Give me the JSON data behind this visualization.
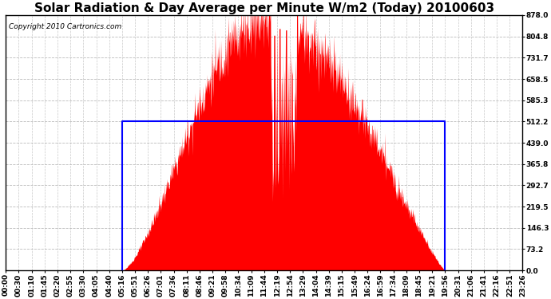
{
  "title": "Solar Radiation & Day Average per Minute W/m2 (Today) 20100603",
  "copyright": "Copyright 2010 Cartronics.com",
  "background_color": "#ffffff",
  "plot_bg_color": "#ffffff",
  "yticks": [
    0.0,
    73.2,
    146.3,
    219.5,
    292.7,
    365.8,
    439.0,
    512.2,
    585.3,
    658.5,
    731.7,
    804.8,
    878.0
  ],
  "ymax": 878.0,
  "ymin": 0.0,
  "day_average": 512.2,
  "xtick_labels": [
    "00:00",
    "00:30",
    "01:10",
    "01:45",
    "02:20",
    "02:55",
    "03:30",
    "04:05",
    "04:40",
    "05:16",
    "05:51",
    "06:26",
    "07:01",
    "07:36",
    "08:11",
    "08:46",
    "09:21",
    "09:58",
    "10:34",
    "11:09",
    "11:44",
    "12:19",
    "12:54",
    "13:29",
    "14:04",
    "14:39",
    "15:15",
    "15:49",
    "16:24",
    "16:59",
    "17:34",
    "18:09",
    "18:45",
    "19:21",
    "19:56",
    "20:31",
    "21:06",
    "21:41",
    "22:16",
    "22:51",
    "23:26"
  ],
  "grid_color": "#bbbbbb",
  "fill_color": "#ff0000",
  "line_color": "#0000ff",
  "title_fontsize": 11,
  "copyright_fontsize": 6.5,
  "tick_fontsize": 6.5,
  "sunrise_tick": 9,
  "sunset_tick": 34,
  "peak_tick": 20,
  "num_ticks": 41
}
